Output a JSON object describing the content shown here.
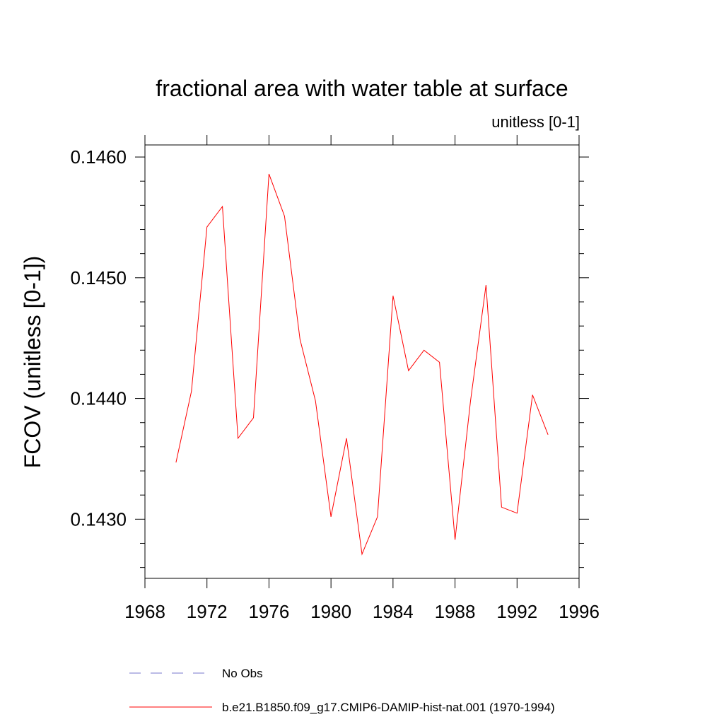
{
  "chart_data": {
    "type": "line",
    "title": "fractional area with water table at surface",
    "subtitle": "unitless [0-1]",
    "xlabel": "",
    "ylabel": "FCOV  (unitless [0-1])",
    "xlim": [
      1968,
      1996
    ],
    "ylim": [
      0.14251,
      0.1461
    ],
    "x_ticks": [
      1968,
      1972,
      1976,
      1980,
      1984,
      1988,
      1992,
      1996
    ],
    "y_ticks": [
      0.143,
      0.144,
      0.145,
      0.146
    ],
    "x_tick_labels": [
      "1968",
      "1972",
      "1976",
      "1980",
      "1984",
      "1988",
      "1992",
      "1996"
    ],
    "y_tick_labels": [
      "0.1430",
      "0.1440",
      "0.1450",
      "0.1460"
    ],
    "grid": false,
    "legend_position": "bottom",
    "series": [
      {
        "name": "No Obs",
        "color": "#7777cc",
        "dash": "dashed",
        "x": [],
        "y": []
      },
      {
        "name": "b.e21.B1850.f09_g17.CMIP6-DAMIP-hist-nat.001 (1970-1994)",
        "color": "#ff0000",
        "dash": "solid",
        "x": [
          1970,
          1971,
          1972,
          1973,
          1974,
          1975,
          1976,
          1977,
          1978,
          1979,
          1980,
          1981,
          1982,
          1983,
          1984,
          1985,
          1986,
          1987,
          1988,
          1989,
          1990,
          1991,
          1992,
          1993,
          1994
        ],
        "y": [
          0.14347,
          0.14406,
          0.14542,
          0.14559,
          0.14367,
          0.14384,
          0.14586,
          0.14551,
          0.14449,
          0.14398,
          0.14302,
          0.14367,
          0.14271,
          0.14302,
          0.14485,
          0.14423,
          0.1444,
          0.1443,
          0.14283,
          0.14398,
          0.14494,
          0.1431,
          0.14305,
          0.14403,
          0.1437
        ]
      }
    ]
  }
}
